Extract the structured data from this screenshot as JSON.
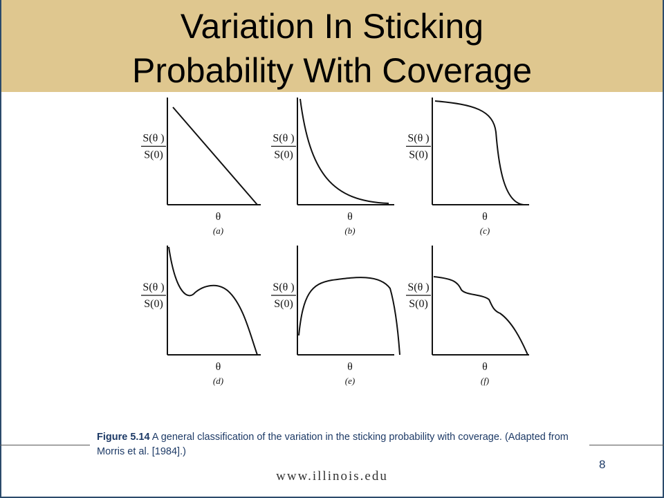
{
  "slide": {
    "title_line1": "Variation In Sticking",
    "title_line2": "Probability With Coverage",
    "page_number": "8",
    "footer_url": "www.illinois.edu",
    "title_bar_color": "#dfc78f"
  },
  "figure": {
    "caption_label": "Figure 5.14",
    "caption_text": " A general classification of the variation in the sticking probability with coverage.  (Adapted from Morris et al. [1984].)",
    "y_label_numerator": "S(θ )",
    "y_label_denominator": "S(0)",
    "x_label": "θ",
    "panels": [
      {
        "label": "(a)",
        "shape": "linear decrease"
      },
      {
        "label": "(b)",
        "shape": "exponential decay"
      },
      {
        "label": "(c)",
        "shape": "plateau then sharp drop"
      },
      {
        "label": "(d)",
        "shape": "decrease with hump"
      },
      {
        "label": "(e)",
        "shape": "rise, plateau, fall"
      },
      {
        "label": "(f)",
        "shape": "stepwise decrease"
      }
    ]
  }
}
